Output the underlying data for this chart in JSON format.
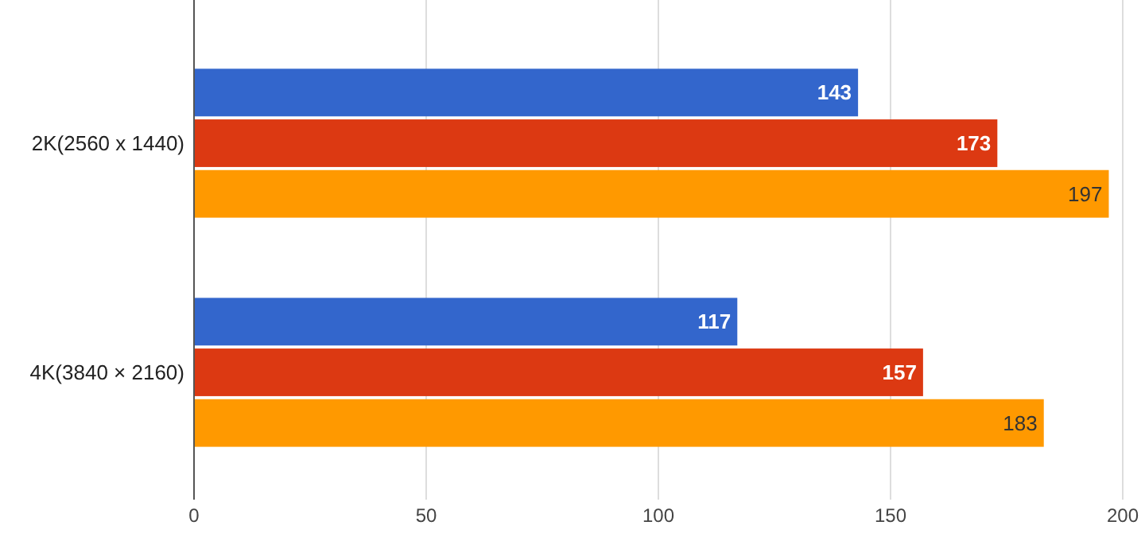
{
  "chart_data": {
    "type": "bar",
    "orientation": "horizontal",
    "categories": [
      "2K(2560 x 1440)",
      "4K(3840 × 2160)"
    ],
    "series": [
      {
        "color": "#3366cc",
        "values": [
          143,
          117
        ]
      },
      {
        "color": "#dc3912",
        "values": [
          173,
          157
        ]
      },
      {
        "color": "#ff9900",
        "values": [
          197,
          183
        ]
      }
    ],
    "xlim": [
      0,
      200
    ],
    "xticks": [
      0,
      50,
      100,
      150,
      200
    ],
    "grid": "x",
    "data_labels": true
  }
}
